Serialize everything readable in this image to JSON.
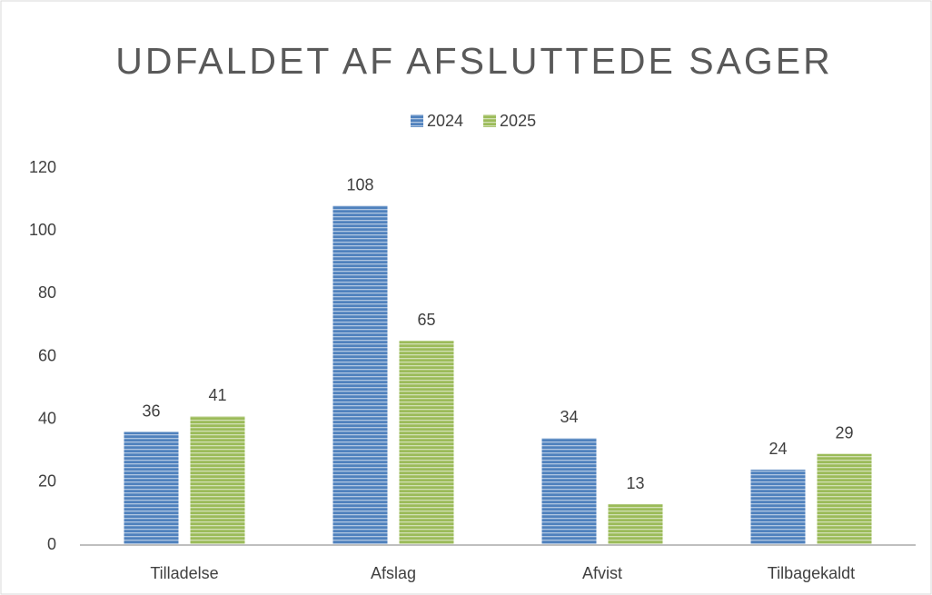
{
  "chart_data": {
    "type": "bar",
    "title": "UDFALDET AF AFSLUTTEDE SAGER",
    "categories": [
      "Tilladelse",
      "Afslag",
      "Afvist",
      "Tilbagekaldt"
    ],
    "series": [
      {
        "name": "2024",
        "color": "#4f81bd",
        "values": [
          36,
          108,
          34,
          24
        ]
      },
      {
        "name": "2025",
        "color": "#9bbb59",
        "values": [
          41,
          65,
          13,
          29
        ]
      }
    ],
    "ylim": [
      0,
      120
    ],
    "yticks": [
      0,
      20,
      40,
      60,
      80,
      100,
      120
    ],
    "grid": false,
    "legend": "top"
  }
}
